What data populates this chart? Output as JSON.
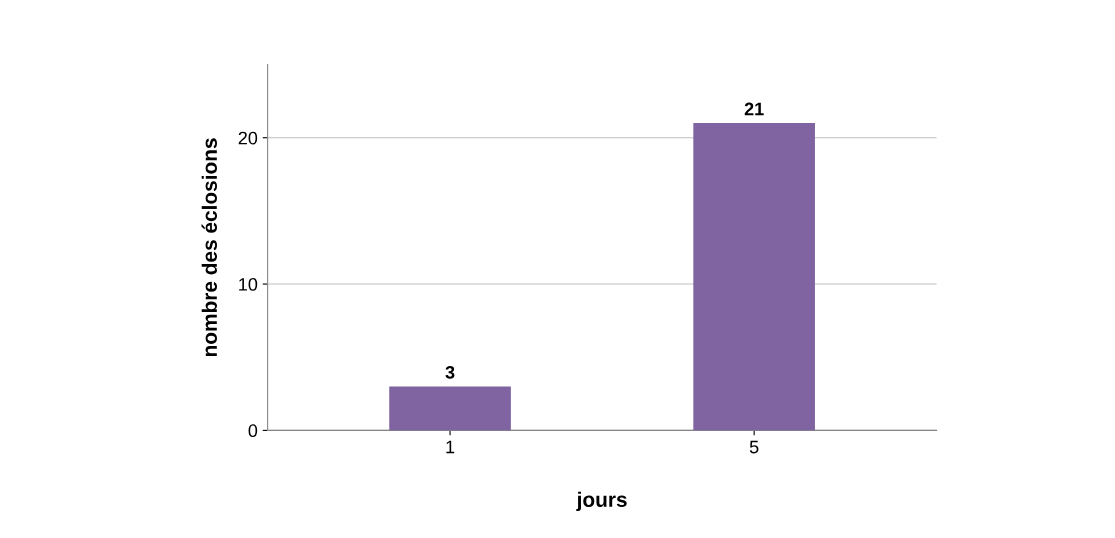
{
  "chart_data": {
    "type": "bar",
    "xlabel": "jours",
    "ylabel": "nombre des éclosions",
    "categories": [
      "1",
      "5"
    ],
    "values": [
      3,
      21
    ],
    "color": "#8064a2",
    "ylim": [
      0,
      25
    ],
    "yticks": [
      0,
      10,
      20
    ],
    "grid": "y",
    "data_labels": true
  }
}
